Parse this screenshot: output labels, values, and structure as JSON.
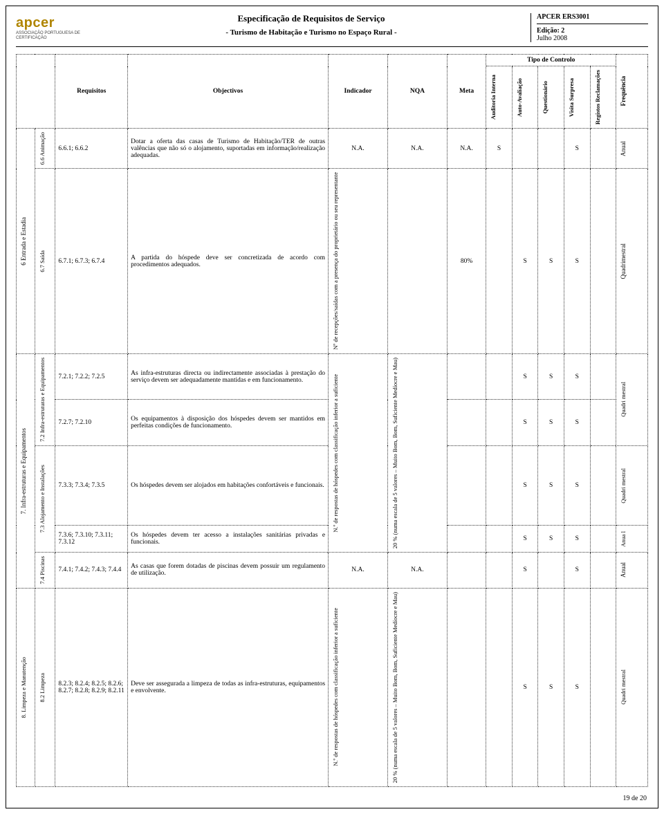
{
  "header": {
    "logo_name": "apcer",
    "logo_sub": "ASSOCIAÇÃO PORTUGUESA DE CERTIFICAÇÃO",
    "title1": "Especificação de Requisitos de Serviço",
    "title2": "- Turismo de Habitação e Turismo no Espaço Rural -",
    "doc_code": "APCER ERS3001",
    "edition_label": "Edição: 2",
    "edition_date": "Julho 2008"
  },
  "columns": {
    "req": "Requisitos",
    "obj": "Objectivos",
    "ind": "Indicador",
    "nqa": "NQA",
    "meta": "Meta",
    "tipo": "Tipo de Controlo",
    "c1": "Auditoria Interna",
    "c2": "Auto-Avaliação",
    "c3": "Questionário",
    "c4": "Visita Surpresa",
    "c5": "Registos Reclamações",
    "freq": "Frequência"
  },
  "sections": {
    "s6": "6 Entrada e Estadia",
    "s6_6": "6.6 Animação",
    "s6_7": "6.7 Saída",
    "s7": "7. Infra-estruturas e Equipamentos",
    "s7_2": "7.2 Infra-estruturas e Equipamentos",
    "s7_3": "7.3 Alojamento e Instalações",
    "s7_4": "7.4 Piscinas",
    "s8": "8. Limpeza e Manutenção",
    "s8_2": "8.2 Limpeza"
  },
  "rows": [
    {
      "req": "6.6.1; 6.6.2",
      "obj": "Dotar a oferta das casas de Turismo de Habitação/TER de outras valências que não só o alojamento, suportadas em informação/realização adequadas.",
      "ind": "N.A.",
      "nqa": "N.A.",
      "meta": "N.A.",
      "c1": "S",
      "c2": "",
      "c3": "",
      "c4": "S",
      "c5": "",
      "freq": "Anual"
    },
    {
      "req": "6.7.1; 6.7.3; 6.7.4",
      "obj": "A partida do hóspede deve ser concretizada de acordo com procedimentos adequados.",
      "ind": "Nº de recepções/saídas com a presença do proprietário ou seu representante",
      "nqa": "",
      "meta": "80%",
      "c1": "",
      "c2": "S",
      "c3": "S",
      "c4": "S",
      "c5": "",
      "freq": "Quadrimestral"
    },
    {
      "req": "7.2.1; 7.2.2; 7.2.5",
      "obj": "As infra-estruturas directa ou indirectamente associadas à prestação do serviço devem ser adequadamente mantidas e em funcionamento.",
      "ind": "N.º de respostas de hóspedes com classificação inferior a suficiente",
      "nqa": "20 % (numa escala de 5 valores – Muito Bom, Bom, Suficiente Medíocre e Mau)",
      "meta": "",
      "c1": "",
      "c2": "S",
      "c3": "S",
      "c4": "S",
      "c5": "",
      "freq": "Quadri mestral"
    },
    {
      "req": "7.2.7; 7.2.10",
      "obj": "Os equipamentos à disposição dos hóspedes devem ser mantidos em perfeitas condições de funcionamento.",
      "meta": "",
      "c1": "",
      "c2": "S",
      "c3": "S",
      "c4": "S",
      "c5": ""
    },
    {
      "req": "7.3.3; 7.3.4; 7.3.5",
      "obj": "Os hóspedes devem ser alojados em habitações confortáveis e funcionais.",
      "meta": "",
      "c1": "",
      "c2": "S",
      "c3": "S",
      "c4": "S",
      "c5": "",
      "freq": "Quadri mestral"
    },
    {
      "req": "7.3.6; 7.3.10; 7.3.11; 7.3.12",
      "obj": "Os hóspedes devem ter acesso a instalações sanitárias privadas e funcionais.",
      "meta": "",
      "c1": "",
      "c2": "S",
      "c3": "S",
      "c4": "S",
      "c5": "",
      "freq": "Anua l"
    },
    {
      "req": "7.4.1; 7.4.2; 7.4.3; 7.4.4",
      "obj": "As casas que forem dotadas de piscinas devem possuir um regulamento de utilização.",
      "ind": "N.A.",
      "nqa": "N.A.",
      "meta": "",
      "c1": "",
      "c2": "S",
      "c3": "",
      "c4": "S",
      "c5": "",
      "freq": "Anual"
    },
    {
      "req": "8.2.3; 8.2.4; 8.2.5; 8.2.6; 8.2.7; 8.2.8; 8.2.9; 8.2.11",
      "obj": "Deve ser assegurada a limpeza de todas as infra-estruturas, equipamentos e envolvente.",
      "ind": "N.º de respostas de hóspedes com classificação inferior a suficiente",
      "nqa": "20 % (numa escala de 5 valores – Muito Bom, Bom, Suficiente Medíocre e Mau)",
      "meta": "",
      "c1": "",
      "c2": "S",
      "c3": "S",
      "c4": "S",
      "c5": "",
      "freq": "Quadri mestral"
    }
  ],
  "footer": {
    "page": "19 de 20"
  }
}
